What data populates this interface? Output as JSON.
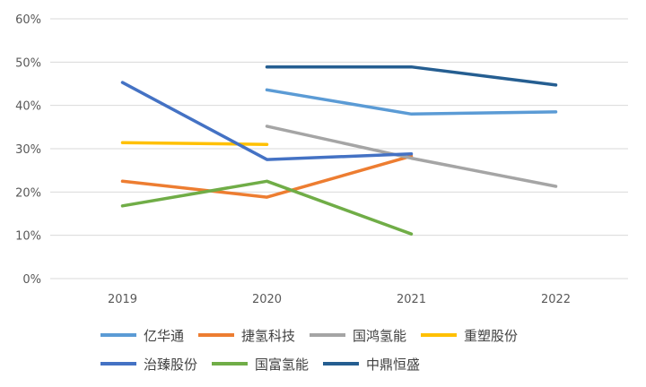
{
  "chart_data": {
    "type": "line",
    "categories": [
      "2019",
      "2020",
      "2021",
      "2022"
    ],
    "ylim": [
      0,
      60
    ],
    "yticks": [
      "0%",
      "10%",
      "20%",
      "30%",
      "40%",
      "50%",
      "60%"
    ],
    "grid": true,
    "legend_position": "bottom",
    "series": [
      {
        "name": "亿华通",
        "color": "#5b9bd5",
        "values": [
          null,
          43.6,
          38.0,
          38.5
        ]
      },
      {
        "name": "捷氢科技",
        "color": "#ed7d31",
        "values": [
          22.5,
          18.8,
          28.3,
          null
        ]
      },
      {
        "name": "国鸿氢能",
        "color": "#a5a5a5",
        "values": [
          null,
          35.2,
          27.8,
          21.3
        ]
      },
      {
        "name": "重塑股份",
        "color": "#ffc000",
        "values": [
          31.4,
          31.0,
          null,
          null
        ]
      },
      {
        "name": "治臻股份",
        "color": "#4472c4",
        "values": [
          45.3,
          27.5,
          28.8,
          null
        ]
      },
      {
        "name": "国富氢能",
        "color": "#70ad47",
        "values": [
          16.8,
          22.5,
          10.3,
          null
        ]
      },
      {
        "name": "中鼎恒盛",
        "color": "#255e91",
        "values": [
          null,
          48.9,
          48.9,
          44.7
        ]
      }
    ]
  }
}
